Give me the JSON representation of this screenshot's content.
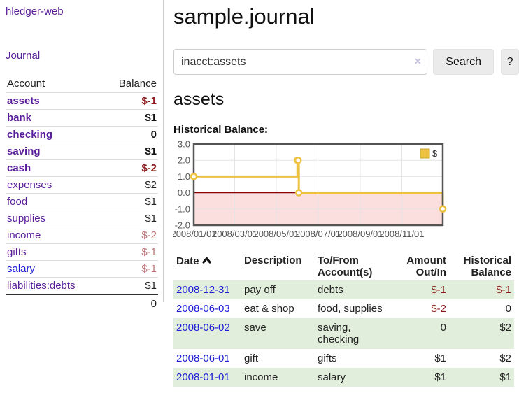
{
  "app": {
    "title": "hledger-web",
    "nav_journal": "Journal"
  },
  "colors": {
    "link_purple": "#5a1d9a",
    "link_blue": "#1d1dd8",
    "negative_strong": "#8f1d1d",
    "negative_soft": "#bd7677",
    "row_green": "#e2eedc",
    "chart_yellow": "#EDC240",
    "negative_region_pink": "#fbdede",
    "zero_line_red": "#8b0000"
  },
  "sidebar": {
    "header": {
      "account": "Account",
      "balance": "Balance"
    },
    "accounts": [
      {
        "label": "assets",
        "balance": "$-1"
      },
      {
        "label": "bank",
        "balance": "$1"
      },
      {
        "label": "checking",
        "balance": "0"
      },
      {
        "label": "saving",
        "balance": "$1"
      },
      {
        "label": "cash",
        "balance": "$-2"
      },
      {
        "label": "expenses",
        "balance": "$2"
      },
      {
        "label": "food",
        "balance": "$1"
      },
      {
        "label": "supplies",
        "balance": "$1"
      },
      {
        "label": "income",
        "balance": "$-2"
      },
      {
        "label": "gifts",
        "balance": "$-1"
      },
      {
        "label": "salary",
        "balance": "$-1"
      },
      {
        "label": "liabilities:debts",
        "balance": "$1"
      }
    ],
    "total": "0"
  },
  "main": {
    "title": "sample.journal",
    "search": {
      "value": "inacct:assets",
      "clear_icon": "×",
      "button": "Search",
      "help_button": "?"
    },
    "account_heading": "assets",
    "chart_label": "Historical Balance:",
    "table": {
      "headers": {
        "date": "Date",
        "description": "Description",
        "accounts": "To/From Account(s)",
        "amount": "Amount Out/In",
        "balance": "Historical Balance"
      },
      "rows": [
        {
          "date": "2008-12-31",
          "description": "pay off",
          "accounts": "debts",
          "amount": "$-1",
          "balance": "$-1"
        },
        {
          "date": "2008-06-03",
          "description": "eat & shop",
          "accounts": "food, supplies",
          "amount": "$-2",
          "balance": "0"
        },
        {
          "date": "2008-06-02",
          "description": "save",
          "accounts": "saving, checking",
          "amount": "0",
          "balance": "$2"
        },
        {
          "date": "2008-06-01",
          "description": "gift",
          "accounts": "gifts",
          "amount": "$1",
          "balance": "$2"
        },
        {
          "date": "2008-01-01",
          "description": "income",
          "accounts": "salary",
          "amount": "$1",
          "balance": "$1"
        }
      ]
    }
  },
  "chart_data": {
    "type": "line",
    "step": true,
    "title": "Historical Balance",
    "series": [
      {
        "name": "$",
        "color": "#EDC240",
        "points": [
          {
            "date": "2008-01-01",
            "day": 0,
            "value": 1
          },
          {
            "date": "2008-06-01",
            "day": 152,
            "value": 2
          },
          {
            "date": "2008-06-02",
            "day": 153,
            "value": 2
          },
          {
            "date": "2008-06-03",
            "day": 154,
            "value": 0
          },
          {
            "date": "2008-12-31",
            "day": 365,
            "value": -1
          }
        ]
      }
    ],
    "x_ticks": [
      {
        "label": "2008/01/01",
        "day": 0
      },
      {
        "label": "2008/03/01",
        "day": 60
      },
      {
        "label": "2008/05/01",
        "day": 121
      },
      {
        "label": "2008/07/01",
        "day": 182
      },
      {
        "label": "2008/09/01",
        "day": 244
      },
      {
        "label": "2008/11/01",
        "day": 305
      }
    ],
    "y_ticks": [
      "3.0",
      "2.0",
      "1.0",
      "0.0",
      "-1.0",
      "-2.0"
    ],
    "ylim": [
      -2,
      3
    ],
    "xlim_days": [
      0,
      365
    ],
    "grid": true,
    "legend_position": "top-right",
    "legend_label": "$",
    "negative_region_color": "#fbdede",
    "zero_line_color": "#8b0000",
    "border_color": "#545454",
    "grid_color": "#e4e4e4",
    "axis_label_color": "#545454",
    "marker_fill": "#ffffff"
  }
}
